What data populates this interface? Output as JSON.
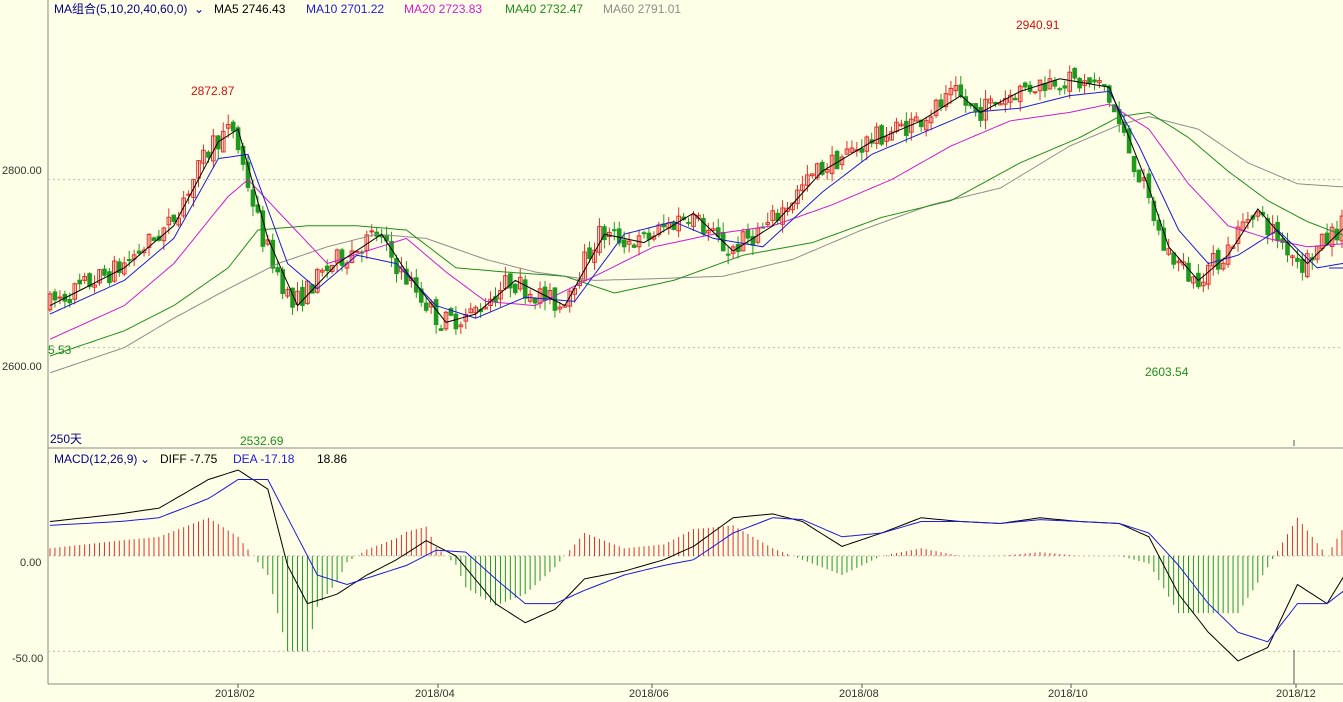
{
  "colors": {
    "background": "#ffffe7",
    "up": "#e0302c",
    "down": "#1f9a1f",
    "ma5": "#000000",
    "ma10": "#1a1adc",
    "ma20": "#d01ad0",
    "ma40": "#1d8f1d",
    "ma60": "#8c8c8c",
    "macd_dif": "#000000",
    "macd_dea": "#1a1adc",
    "header_text": "#00008b",
    "axis": "#555555"
  },
  "header": {
    "ma_group": "MA组合(5,10,20,40,60,0)",
    "ma_group_arrow": "chevron-down",
    "ma5": "MA5 2746.43",
    "ma10": "MA10 2701.22",
    "ma20": "MA20 2723.83",
    "ma40": "MA40 2732.47",
    "ma60": "MA60 2791.01"
  },
  "macd_header": {
    "name": "MACD(12,26,9)",
    "arrow": "chevron-down",
    "diff": "DIFF -7.75",
    "dea": "DEA -17.18",
    "macd": "18.86"
  },
  "price_axis": {
    "ticks": [
      "2800.00",
      "2600.00"
    ]
  },
  "macd_axis": {
    "ticks": [
      "0.00",
      "-50.00"
    ]
  },
  "date_axis": {
    "ticks": [
      "2018/02",
      "2018/04",
      "2018/06",
      "2018/08",
      "2018/10",
      "2018/12"
    ]
  },
  "annotations": {
    "high_1": "2872.87",
    "low_1": "2532.69",
    "high_2": "2940.91",
    "low_2": "2603.54",
    "left_cut_value": "5.53",
    "period": "250天"
  },
  "chart_data": {
    "type": "candlestick",
    "title": "",
    "ylim": [
      2490,
      2990
    ],
    "price_ticks": [
      2800,
      2600
    ],
    "date_ticks": [
      "2018/02",
      "2018/04",
      "2018/06",
      "2018/08",
      "2018/10",
      "2018/12"
    ],
    "ma_keypoints": {
      "ma5": [
        [
          0,
          2650
        ],
        [
          15,
          2695
        ],
        [
          25,
          2745
        ],
        [
          34,
          2845
        ],
        [
          38,
          2860
        ],
        [
          44,
          2730
        ],
        [
          50,
          2650
        ],
        [
          58,
          2700
        ],
        [
          67,
          2735
        ],
        [
          72,
          2690
        ],
        [
          80,
          2630
        ],
        [
          86,
          2640
        ],
        [
          94,
          2680
        ],
        [
          104,
          2650
        ],
        [
          112,
          2735
        ],
        [
          120,
          2725
        ],
        [
          130,
          2760
        ],
        [
          138,
          2715
        ],
        [
          146,
          2745
        ],
        [
          156,
          2810
        ],
        [
          166,
          2845
        ],
        [
          176,
          2870
        ],
        [
          184,
          2900
        ],
        [
          188,
          2880
        ],
        [
          196,
          2905
        ],
        [
          204,
          2920
        ],
        [
          214,
          2910
        ],
        [
          222,
          2790
        ],
        [
          226,
          2720
        ],
        [
          232,
          2680
        ],
        [
          238,
          2710
        ],
        [
          244,
          2765
        ],
        [
          250,
          2725
        ],
        [
          254,
          2700
        ],
        [
          262,
          2746
        ]
      ],
      "ma10": [
        [
          0,
          2640
        ],
        [
          15,
          2680
        ],
        [
          25,
          2730
        ],
        [
          34,
          2825
        ],
        [
          40,
          2830
        ],
        [
          48,
          2700
        ],
        [
          54,
          2670
        ],
        [
          62,
          2710
        ],
        [
          70,
          2700
        ],
        [
          78,
          2650
        ],
        [
          86,
          2635
        ],
        [
          96,
          2660
        ],
        [
          106,
          2655
        ],
        [
          116,
          2735
        ],
        [
          126,
          2750
        ],
        [
          134,
          2730
        ],
        [
          144,
          2720
        ],
        [
          156,
          2785
        ],
        [
          166,
          2830
        ],
        [
          176,
          2855
        ],
        [
          186,
          2880
        ],
        [
          196,
          2885
        ],
        [
          206,
          2900
        ],
        [
          214,
          2905
        ],
        [
          220,
          2840
        ],
        [
          228,
          2740
        ],
        [
          234,
          2700
        ],
        [
          240,
          2710
        ],
        [
          248,
          2740
        ],
        [
          256,
          2695
        ],
        [
          262,
          2701
        ]
      ],
      "ma20": [
        [
          0,
          2610
        ],
        [
          15,
          2650
        ],
        [
          25,
          2700
        ],
        [
          36,
          2780
        ],
        [
          40,
          2800
        ],
        [
          48,
          2750
        ],
        [
          56,
          2700
        ],
        [
          64,
          2715
        ],
        [
          72,
          2730
        ],
        [
          80,
          2690
        ],
        [
          88,
          2655
        ],
        [
          98,
          2650
        ],
        [
          110,
          2685
        ],
        [
          122,
          2720
        ],
        [
          134,
          2735
        ],
        [
          146,
          2745
        ],
        [
          158,
          2770
        ],
        [
          170,
          2800
        ],
        [
          182,
          2840
        ],
        [
          194,
          2870
        ],
        [
          206,
          2880
        ],
        [
          214,
          2890
        ],
        [
          222,
          2860
        ],
        [
          230,
          2795
        ],
        [
          238,
          2745
        ],
        [
          246,
          2730
        ],
        [
          254,
          2720
        ],
        [
          262,
          2724
        ]
      ],
      "ma40": [
        [
          0,
          2590
        ],
        [
          15,
          2620
        ],
        [
          25,
          2650
        ],
        [
          36,
          2695
        ],
        [
          42,
          2740
        ],
        [
          52,
          2745
        ],
        [
          62,
          2745
        ],
        [
          72,
          2740
        ],
        [
          82,
          2695
        ],
        [
          92,
          2690
        ],
        [
          104,
          2685
        ],
        [
          114,
          2665
        ],
        [
          126,
          2680
        ],
        [
          140,
          2710
        ],
        [
          154,
          2725
        ],
        [
          168,
          2755
        ],
        [
          182,
          2775
        ],
        [
          196,
          2820
        ],
        [
          208,
          2850
        ],
        [
          216,
          2875
        ],
        [
          222,
          2880
        ],
        [
          230,
          2850
        ],
        [
          238,
          2810
        ],
        [
          246,
          2775
        ],
        [
          254,
          2750
        ],
        [
          262,
          2732
        ]
      ],
      "ma60": [
        [
          0,
          2570
        ],
        [
          15,
          2600
        ],
        [
          25,
          2635
        ],
        [
          36,
          2670
        ],
        [
          46,
          2700
        ],
        [
          56,
          2720
        ],
        [
          66,
          2735
        ],
        [
          76,
          2730
        ],
        [
          88,
          2705
        ],
        [
          98,
          2690
        ],
        [
          110,
          2680
        ],
        [
          122,
          2682
        ],
        [
          136,
          2685
        ],
        [
          150,
          2705
        ],
        [
          164,
          2740
        ],
        [
          178,
          2770
        ],
        [
          192,
          2790
        ],
        [
          206,
          2840
        ],
        [
          216,
          2865
        ],
        [
          222,
          2875
        ],
        [
          232,
          2860
        ],
        [
          242,
          2820
        ],
        [
          252,
          2795
        ],
        [
          262,
          2791
        ]
      ]
    },
    "highs": [
      {
        "label": "2872.87",
        "value": 2872.87
      },
      {
        "label": "2940.91",
        "value": 2940.91
      }
    ],
    "lows": [
      {
        "label": "2532.69",
        "value": 2532.69
      },
      {
        "label": "2603.54",
        "value": 2603.54
      }
    ],
    "macd": {
      "ylim": [
        -65,
        45
      ],
      "ticks": [
        0,
        -50
      ],
      "dif_keypoints": [
        [
          0,
          18
        ],
        [
          14,
          22
        ],
        [
          22,
          25
        ],
        [
          32,
          40
        ],
        [
          38,
          45
        ],
        [
          44,
          35
        ],
        [
          48,
          -5
        ],
        [
          52,
          -25
        ],
        [
          58,
          -20
        ],
        [
          64,
          -10
        ],
        [
          70,
          -2
        ],
        [
          76,
          8
        ],
        [
          82,
          0
        ],
        [
          90,
          -25
        ],
        [
          96,
          -35
        ],
        [
          102,
          -28
        ],
        [
          108,
          -12
        ],
        [
          116,
          -8
        ],
        [
          124,
          -2
        ],
        [
          130,
          5
        ],
        [
          138,
          20
        ],
        [
          146,
          22
        ],
        [
          152,
          18
        ],
        [
          160,
          5
        ],
        [
          168,
          12
        ],
        [
          176,
          20
        ],
        [
          184,
          18
        ],
        [
          192,
          17
        ],
        [
          200,
          20
        ],
        [
          208,
          18
        ],
        [
          216,
          17
        ],
        [
          222,
          10
        ],
        [
          228,
          -20
        ],
        [
          234,
          -40
        ],
        [
          240,
          -55
        ],
        [
          246,
          -48
        ],
        [
          252,
          -15
        ],
        [
          258,
          -25
        ],
        [
          262,
          -8
        ]
      ],
      "dea_keypoints": [
        [
          0,
          16
        ],
        [
          14,
          18
        ],
        [
          22,
          20
        ],
        [
          32,
          30
        ],
        [
          38,
          40
        ],
        [
          44,
          40
        ],
        [
          50,
          10
        ],
        [
          54,
          -10
        ],
        [
          60,
          -15
        ],
        [
          66,
          -10
        ],
        [
          72,
          -5
        ],
        [
          78,
          3
        ],
        [
          84,
          2
        ],
        [
          90,
          -12
        ],
        [
          96,
          -25
        ],
        [
          102,
          -25
        ],
        [
          108,
          -18
        ],
        [
          116,
          -10
        ],
        [
          124,
          -5
        ],
        [
          130,
          -2
        ],
        [
          138,
          12
        ],
        [
          146,
          20
        ],
        [
          152,
          19
        ],
        [
          160,
          10
        ],
        [
          168,
          12
        ],
        [
          176,
          18
        ],
        [
          184,
          18
        ],
        [
          192,
          17
        ],
        [
          200,
          19
        ],
        [
          208,
          18
        ],
        [
          216,
          17
        ],
        [
          222,
          12
        ],
        [
          228,
          -5
        ],
        [
          234,
          -25
        ],
        [
          240,
          -40
        ],
        [
          246,
          -45
        ],
        [
          252,
          -25
        ],
        [
          258,
          -25
        ],
        [
          262,
          -17
        ]
      ],
      "last_value": 18.86
    }
  }
}
